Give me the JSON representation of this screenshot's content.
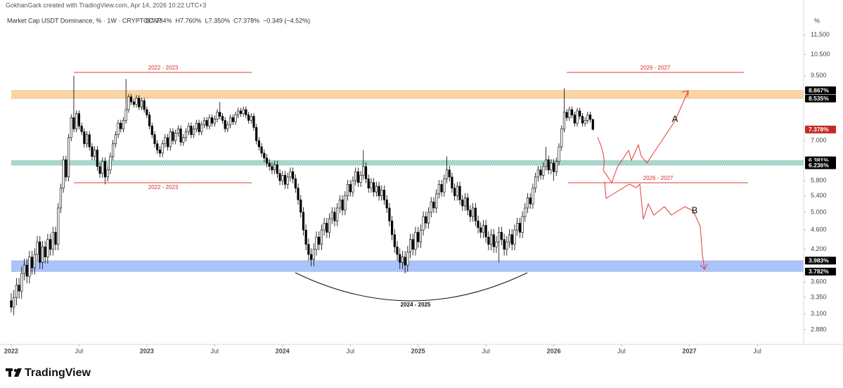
{
  "header": "GokhanGark created with TradingView.com, Apr 14, 2026 10:22 UTC+3",
  "brand": "TradingView",
  "chart_data": {
    "type": "candlestick",
    "title": "Market Cap USDT Dominance, % · 1W · CRYPTOCAP",
    "ohlc_legend": [
      "O7.734%",
      "H7.760%",
      "L7.350%",
      "C7.378%",
      "−0.349 (−4.52%)"
    ],
    "axis_unit": "%",
    "log_scale": true,
    "grid": false,
    "up_color": "#ffffff",
    "down_color": "#000000",
    "ylim": [
      2.686,
      13.56
    ],
    "yticks": [
      {
        "value": 11.5,
        "label": "11.500"
      },
      {
        "value": 10.5,
        "label": "10.500"
      },
      {
        "value": 9.5,
        "label": "9.500"
      },
      {
        "value": 7,
        "label": "7.000"
      },
      {
        "value": 5.8,
        "label": "5.800"
      },
      {
        "value": 5.4,
        "label": "5.400"
      },
      {
        "value": 5,
        "label": "5.000"
      },
      {
        "value": 4.6,
        "label": "4.600"
      },
      {
        "value": 4.2,
        "label": "4.200"
      },
      {
        "value": 3.6,
        "label": "3.600"
      },
      {
        "value": 3.35,
        "label": "3.350"
      },
      {
        "value": 3.1,
        "label": "3.100"
      },
      {
        "value": 2.88,
        "label": "2.880"
      }
    ],
    "xlim": [
      -4.3,
      303.8
    ],
    "xticks": [
      {
        "value": 0,
        "label": "2022"
      },
      {
        "value": 26,
        "label": "Jul"
      },
      {
        "value": 52,
        "label": "2023"
      },
      {
        "value": 78,
        "label": "Jul"
      },
      {
        "value": 104,
        "label": "2024"
      },
      {
        "value": 130,
        "label": "Jul"
      },
      {
        "value": 156,
        "label": "2025"
      },
      {
        "value": 182,
        "label": "Jul"
      },
      {
        "value": 208,
        "label": "2026"
      },
      {
        "value": 234,
        "label": "Jul"
      },
      {
        "value": 260,
        "label": "2027"
      },
      {
        "value": 286,
        "label": "Jul"
      }
    ],
    "zones": [
      {
        "color": "#fcd3a1",
        "levels": [
          8.535,
          8.867
        ]
      },
      {
        "color": "#a6d8cd",
        "levels": [
          6.236,
          6.381
        ]
      },
      {
        "color": "#abc3fb",
        "levels": [
          3.782,
          3.983
        ]
      }
    ],
    "price_labels": [
      {
        "value": 8.867,
        "label": "8.867%",
        "color": "#000000"
      },
      {
        "value": 8.535,
        "label": "8.535%",
        "color": "#000000"
      },
      {
        "value": 7.378,
        "label": "7.378%",
        "color": "#c62828"
      },
      {
        "value": 6.381,
        "label": "6.381%",
        "color": "#000000"
      },
      {
        "value": 6.236,
        "label": "6.236%",
        "color": "#000000"
      },
      {
        "value": 3.983,
        "label": "3.983%",
        "color": "#000000"
      },
      {
        "value": 3.782,
        "label": "3.782%",
        "color": "#000000"
      }
    ],
    "annotations": [
      "2022 - 2023",
      "2022 - 2023",
      "2026 - 2027",
      "2026 - 2027",
      "2024 - 2025",
      "A",
      "B"
    ],
    "open": [
      3.3,
      3.2,
      3.35,
      3.55,
      3.45,
      3.75,
      3.9,
      3.7,
      4.05,
      3.85,
      4.1,
      4.35,
      3.95,
      4.25,
      4.05,
      4.4,
      4.2,
      4.55,
      4.3,
      5.1,
      5.6,
      6.4,
      5.9,
      7.1,
      7.8,
      7.4,
      7.95,
      7.5,
      7.3,
      6.9,
      7.2,
      6.8,
      6.5,
      6.7,
      6.2,
      6.0,
      6.35,
      5.9,
      6.1,
      6.5,
      6.9,
      7.2,
      7.6,
      7.4,
      7.7,
      8.1,
      8.6,
      8.4,
      8.3,
      8.55,
      8.2,
      8.45,
      8.1,
      7.9,
      7.5,
      7.2,
      6.9,
      6.7,
      6.6,
      6.9,
      7.1,
      6.8,
      7.3,
      7.0,
      7.25,
      7.4,
      6.95,
      7.1,
      7.3,
      7.5,
      7.2,
      7.4,
      7.6,
      7.3,
      7.55,
      7.7,
      7.5,
      7.8,
      7.6,
      7.75,
      8.0,
      7.85,
      7.7,
      7.4,
      7.55,
      7.8,
      7.65,
      7.9,
      8.05,
      7.95,
      8.1,
      7.9,
      7.7,
      7.85,
      7.45,
      7.0,
      6.8,
      6.6,
      6.45,
      6.3,
      6.2,
      6.1,
      6.25,
      6.0,
      5.8,
      5.95,
      5.7,
      5.9,
      6.05,
      5.85,
      5.6,
      5.3,
      5.0,
      4.6,
      4.3,
      4.1,
      4.0,
      4.2,
      4.45,
      4.3,
      4.6,
      4.75,
      4.55,
      4.85,
      5.0,
      4.8,
      5.1,
      5.3,
      5.05,
      5.4,
      5.7,
      5.5,
      5.8,
      6.05,
      5.75,
      5.95,
      6.2,
      5.85,
      5.6,
      5.75,
      5.5,
      5.65,
      5.4,
      5.55,
      5.3,
      5.1,
      4.8,
      4.5,
      4.25,
      4.1,
      3.95,
      4.05,
      3.9,
      4.15,
      4.4,
      4.2,
      4.55,
      4.35,
      4.6,
      4.9,
      4.75,
      5.0,
      5.25,
      5.1,
      5.45,
      5.7,
      5.5,
      5.85,
      6.1,
      5.9,
      5.6,
      5.4,
      5.65,
      5.3,
      5.15,
      5.35,
      5.05,
      4.9,
      5.1,
      4.8,
      4.65,
      4.55,
      4.7,
      4.45,
      4.3,
      4.5,
      4.25,
      4.35,
      4.55,
      4.4,
      4.2,
      4.35,
      4.5,
      4.3,
      4.6,
      4.75,
      4.55,
      4.9,
      5.1,
      5.35,
      5.2,
      5.6,
      5.9,
      6.1,
      5.95,
      6.2,
      6.4,
      6.1,
      6.3,
      6.05,
      6.35,
      6.8,
      7.4,
      8.0,
      7.8,
      8.1,
      7.9,
      7.6,
      8.05,
      7.85,
      7.6,
      7.7,
      7.9,
      7.734
    ],
    "high": [
      3.42,
      3.47,
      3.67,
      3.67,
      3.87,
      4.02,
      4.02,
      4.17,
      4.17,
      4.22,
      4.47,
      4.47,
      4.37,
      4.37,
      4.52,
      4.52,
      4.67,
      4.67,
      5.22,
      5.72,
      6.52,
      6.52,
      7.22,
      7.92,
      9.5,
      8.07,
      8.07,
      7.62,
      7.42,
      7.32,
      7.32,
      6.92,
      6.82,
      6.82,
      6.32,
      6.47,
      6.47,
      6.22,
      6.62,
      7.02,
      7.32,
      7.72,
      7.72,
      7.82,
      9.35,
      8.72,
      8.72,
      8.52,
      8.67,
      8.67,
      8.57,
      8.57,
      8.22,
      8.02,
      7.62,
      7.32,
      7.02,
      6.82,
      7.02,
      7.22,
      7.22,
      7.42,
      7.42,
      7.37,
      7.52,
      7.52,
      7.22,
      7.42,
      7.62,
      7.62,
      7.52,
      7.72,
      7.72,
      7.67,
      7.82,
      7.82,
      7.92,
      7.92,
      7.87,
      8.12,
      8.4,
      7.97,
      7.82,
      7.67,
      7.92,
      7.92,
      8.02,
      8.17,
      8.17,
      8.22,
      8.22,
      8.02,
      7.97,
      7.97,
      7.57,
      7.12,
      6.92,
      6.72,
      6.57,
      6.42,
      6.32,
      6.37,
      6.37,
      6.12,
      6.07,
      6.07,
      6.02,
      6.17,
      6.17,
      5.97,
      5.72,
      5.42,
      5.12,
      4.72,
      4.42,
      4.22,
      4.32,
      4.57,
      4.57,
      4.72,
      4.87,
      4.87,
      4.97,
      5.12,
      5.12,
      5.22,
      5.42,
      5.42,
      5.52,
      5.82,
      5.82,
      5.92,
      6.17,
      6.17,
      6.07,
      6.7,
      6.32,
      5.97,
      5.87,
      5.87,
      5.77,
      5.77,
      5.67,
      5.67,
      5.42,
      5.22,
      4.92,
      4.62,
      4.37,
      4.22,
      4.17,
      4.17,
      4.27,
      4.52,
      4.52,
      4.67,
      4.67,
      4.72,
      5.02,
      5.02,
      5.12,
      5.37,
      5.37,
      5.57,
      5.82,
      5.82,
      5.97,
      6.5,
      6.22,
      6.02,
      5.72,
      5.77,
      5.77,
      5.42,
      5.47,
      5.47,
      5.17,
      5.22,
      5.22,
      4.92,
      4.77,
      4.82,
      4.82,
      4.57,
      4.62,
      4.62,
      4.47,
      4.67,
      4.67,
      4.52,
      4.47,
      4.62,
      4.62,
      4.72,
      4.87,
      4.87,
      5.02,
      5.22,
      5.47,
      5.47,
      5.72,
      6.02,
      6.22,
      6.22,
      6.32,
      6.8,
      6.52,
      6.42,
      6.42,
      6.47,
      6.92,
      7.52,
      8.95,
      8.12,
      8.22,
      8.22,
      8.02,
      8.17,
      8.17,
      7.97,
      7.82,
      8.02,
      8.02,
      7.76
    ],
    "low": [
      3.12,
      3.08,
      3.23,
      3.33,
      3.33,
      3.63,
      3.58,
      3.58,
      3.73,
      3.73,
      3.98,
      3.83,
      3.83,
      3.93,
      3.93,
      4.08,
      4.08,
      4.18,
      4.18,
      4.98,
      5.48,
      5.78,
      5.78,
      6.98,
      7.28,
      7.28,
      7.38,
      7.18,
      6.78,
      6.78,
      6.68,
      6.38,
      6.38,
      6.08,
      5.88,
      5.88,
      5.7,
      5.78,
      5.98,
      6.38,
      6.78,
      7.08,
      7.28,
      7.28,
      7.58,
      7.98,
      8.28,
      8.18,
      8.18,
      8.08,
      8.08,
      7.98,
      7.78,
      7.38,
      7.08,
      6.78,
      6.58,
      6.48,
      6.48,
      6.78,
      6.68,
      6.68,
      6.88,
      6.88,
      7.13,
      6.83,
      6.83,
      6.98,
      7.18,
      7.08,
      7.08,
      7.28,
      7.18,
      7.18,
      7.43,
      7.38,
      7.38,
      7.48,
      7.48,
      7.63,
      7.73,
      7.58,
      7.28,
      7.28,
      7.43,
      7.53,
      7.53,
      7.78,
      7.83,
      7.83,
      7.78,
      7.58,
      7.58,
      7.33,
      6.88,
      6.68,
      6.48,
      6.33,
      6.18,
      6.08,
      5.98,
      5.98,
      5.88,
      5.68,
      5.68,
      5.58,
      5.58,
      5.78,
      5.73,
      5.48,
      5.18,
      4.88,
      4.48,
      4.18,
      3.98,
      3.88,
      3.88,
      4.08,
      4.18,
      4.18,
      4.48,
      4.43,
      4.43,
      4.73,
      4.68,
      4.68,
      4.98,
      4.93,
      4.93,
      5.28,
      5.38,
      5.38,
      5.68,
      5.63,
      5.63,
      5.83,
      5.73,
      5.48,
      5.48,
      5.38,
      5.38,
      5.28,
      5.28,
      5.18,
      4.98,
      4.68,
      4.38,
      4.13,
      3.98,
      3.83,
      3.83,
      3.75,
      3.78,
      4.03,
      4.08,
      4.08,
      4.23,
      4.23,
      4.48,
      4.63,
      4.63,
      4.88,
      4.98,
      4.98,
      5.33,
      5.38,
      5.38,
      5.73,
      5.78,
      5.48,
      5.28,
      5.28,
      5.18,
      5.03,
      5.03,
      4.93,
      4.78,
      4.78,
      4.68,
      4.53,
      4.43,
      4.43,
      4.33,
      4.18,
      4.18,
      4.13,
      4.13,
      3.95,
      4.28,
      4.08,
      4.08,
      4.23,
      4.18,
      4.18,
      4.48,
      4.43,
      4.43,
      4.78,
      4.98,
      5.08,
      5.08,
      5.48,
      5.78,
      5.83,
      5.83,
      6.08,
      5.98,
      5.98,
      5.8,
      5.93,
      6.23,
      6.68,
      7.28,
      7.68,
      7.68,
      7.78,
      7.48,
      7.48,
      7.73,
      7.48,
      7.48,
      7.58,
      7.62,
      7.35
    ],
    "close": [
      3.2,
      3.35,
      3.55,
      3.45,
      3.75,
      3.9,
      3.7,
      4.05,
      3.85,
      4.1,
      4.35,
      3.95,
      4.25,
      4.05,
      4.4,
      4.2,
      4.55,
      4.3,
      5.1,
      5.6,
      6.4,
      5.9,
      7.1,
      7.8,
      7.4,
      7.95,
      7.5,
      7.3,
      6.9,
      7.2,
      6.8,
      6.5,
      6.7,
      6.2,
      6.0,
      6.35,
      5.9,
      6.1,
      6.5,
      6.9,
      7.2,
      7.6,
      7.4,
      7.7,
      8.1,
      8.6,
      8.4,
      8.3,
      8.55,
      8.2,
      8.45,
      8.1,
      7.9,
      7.5,
      7.2,
      6.9,
      6.7,
      6.6,
      6.9,
      7.1,
      6.8,
      7.3,
      7.0,
      7.25,
      7.4,
      6.95,
      7.1,
      7.3,
      7.5,
      7.2,
      7.4,
      7.6,
      7.3,
      7.55,
      7.7,
      7.5,
      7.8,
      7.6,
      7.75,
      8.0,
      7.85,
      7.7,
      7.4,
      7.55,
      7.8,
      7.65,
      7.9,
      8.05,
      7.95,
      8.1,
      7.9,
      7.7,
      7.85,
      7.45,
      7.0,
      6.8,
      6.6,
      6.45,
      6.3,
      6.2,
      6.1,
      6.25,
      6.0,
      5.8,
      5.95,
      5.7,
      5.9,
      6.05,
      5.85,
      5.6,
      5.3,
      5.0,
      4.6,
      4.3,
      4.1,
      4.0,
      4.2,
      4.45,
      4.3,
      4.6,
      4.75,
      4.55,
      4.85,
      5.0,
      4.8,
      5.1,
      5.3,
      5.05,
      5.4,
      5.7,
      5.5,
      5.8,
      6.05,
      5.75,
      5.95,
      6.2,
      5.85,
      5.6,
      5.75,
      5.5,
      5.65,
      5.4,
      5.55,
      5.3,
      5.1,
      4.8,
      4.5,
      4.25,
      4.1,
      3.95,
      4.05,
      3.9,
      4.15,
      4.4,
      4.2,
      4.55,
      4.35,
      4.6,
      4.9,
      4.75,
      5.0,
      5.25,
      5.1,
      5.45,
      5.7,
      5.5,
      5.85,
      6.1,
      5.9,
      5.6,
      5.4,
      5.65,
      5.3,
      5.15,
      5.35,
      5.05,
      4.9,
      5.1,
      4.8,
      4.65,
      4.55,
      4.7,
      4.45,
      4.3,
      4.5,
      4.25,
      4.35,
      4.55,
      4.4,
      4.2,
      4.35,
      4.5,
      4.3,
      4.6,
      4.75,
      4.55,
      4.9,
      5.1,
      5.35,
      5.2,
      5.6,
      5.9,
      6.1,
      5.95,
      6.2,
      6.4,
      6.1,
      6.3,
      6.05,
      6.35,
      6.8,
      7.4,
      8.0,
      7.8,
      8.1,
      7.9,
      7.6,
      8.05,
      7.85,
      7.6,
      7.7,
      7.9,
      7.734,
      7.378
    ]
  }
}
